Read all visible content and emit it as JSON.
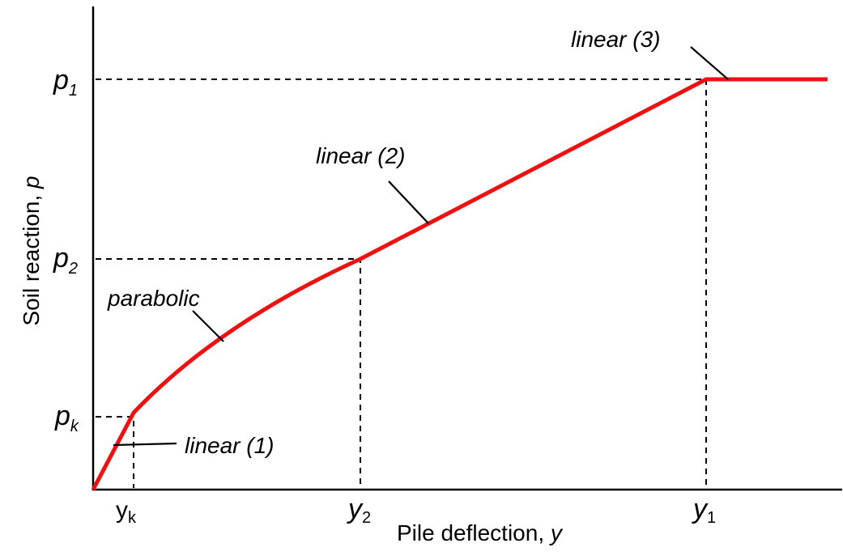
{
  "y_axis_label": {
    "text": "Soil reaction, ",
    "symbol": "p"
  },
  "x_axis_label": {
    "text": "Pile deflection, ",
    "symbol": "y"
  },
  "y_ticks": [
    {
      "symbol": "p",
      "subscript": "1"
    },
    {
      "symbol": "p",
      "subscript": "2"
    },
    {
      "symbol": "p",
      "subscript": "k"
    }
  ],
  "x_ticks": [
    {
      "symbol": "y",
      "subscript": "k"
    },
    {
      "symbol": "y",
      "subscript": "2"
    },
    {
      "symbol": "y",
      "subscript": "1"
    }
  ],
  "annotations": [
    "linear (3)",
    "linear (2)",
    "parabolic",
    "linear (1)"
  ]
}
